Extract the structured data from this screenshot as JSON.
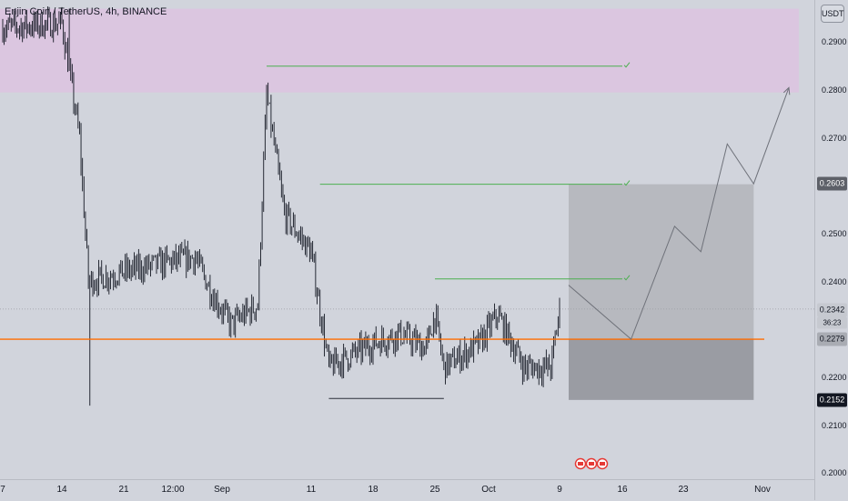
{
  "title": "Enjin Coin / TetherUS, 4h, BINANCE",
  "currency_unit": "USDT",
  "price_axis": {
    "ticks": [
      "0.2900",
      "0.2800",
      "0.2700",
      "0.2500",
      "0.2400",
      "0.2200",
      "0.2100",
      "0.2000"
    ],
    "labels": {
      "target_price": "0.2603",
      "last_price": "0.2342",
      "countdown": "36:23",
      "support_price": "0.2279",
      "stop_price": "0.2152"
    }
  },
  "time_axis": {
    "ticks": [
      "7",
      "14",
      "21",
      "12:00",
      "Sep",
      "11",
      "18",
      "25",
      "Oct",
      "9",
      "16",
      "23",
      "Nov"
    ]
  },
  "colors": {
    "background": "#d1d4dc",
    "supply_zone": "#dbc6e0",
    "support_line": "#ff6d00",
    "target_line": "#4caf50",
    "candles": "#131722",
    "target_box": "#b7b9bf",
    "stop_box": "#9a9ca3",
    "projection": "#6f727a"
  },
  "chart_data": {
    "type": "candlestick",
    "symbol": "ENJUSDT",
    "interval": "4h",
    "exchange": "BINANCE",
    "ylim": [
      0.2,
      0.298
    ],
    "y_ticks": [
      0.29,
      0.28,
      0.27,
      0.25,
      0.24,
      0.22,
      0.21,
      0.2
    ],
    "x_ticks": [
      "7",
      "14",
      "21",
      "12:00",
      "Sep",
      "11",
      "18",
      "25",
      "Oct",
      "9",
      "16",
      "23",
      "Nov"
    ],
    "close_path": [
      [
        "Aug 7",
        0.293
      ],
      [
        "Aug 14",
        0.294
      ],
      [
        "Aug 16",
        0.27
      ],
      [
        "Aug 17",
        0.24
      ],
      [
        "Aug 21",
        0.242
      ],
      [
        "Aug 26",
        0.244
      ],
      [
        "Aug 29",
        0.245
      ],
      [
        "Aug 31",
        0.237
      ],
      [
        "Sep 2",
        0.231
      ],
      [
        "Sep 5",
        0.235
      ],
      [
        "Sep 6",
        0.279
      ],
      [
        "Sep 8",
        0.254
      ],
      [
        "Sep 11",
        0.246
      ],
      [
        "Sep 13",
        0.222
      ],
      [
        "Sep 18",
        0.227
      ],
      [
        "Sep 21",
        0.229
      ],
      [
        "Sep 24",
        0.226
      ],
      [
        "Sep 25",
        0.233
      ],
      [
        "Sep 26",
        0.222
      ],
      [
        "Sep 30",
        0.227
      ],
      [
        "Oct 2",
        0.233
      ],
      [
        "Oct 5",
        0.222
      ],
      [
        "Oct 8",
        0.222
      ],
      [
        "Oct 9",
        0.234
      ]
    ],
    "wick_extremes": {
      "high": 0.297,
      "lows": [
        0.214,
        0.2155
      ]
    },
    "levels": {
      "support": 0.2279,
      "last": 0.2342,
      "target": 0.2603,
      "stop": 0.2152
    },
    "supply_zone": [
      0.2795,
      0.297
    ],
    "resistance_lines": [
      0.285,
      0.2603,
      0.2405
    ],
    "range_low_line": 0.2155,
    "projection_path": [
      [
        "Oct 10",
        0.2392
      ],
      [
        "Oct 17",
        0.2279
      ],
      [
        "Oct 22",
        0.2515
      ],
      [
        "Oct 25",
        0.2462
      ],
      [
        "Oct 28",
        0.2687
      ],
      [
        "Oct 31",
        0.2604
      ],
      [
        "Nov 4",
        0.2805
      ]
    ],
    "legend": "none",
    "grid": false
  }
}
